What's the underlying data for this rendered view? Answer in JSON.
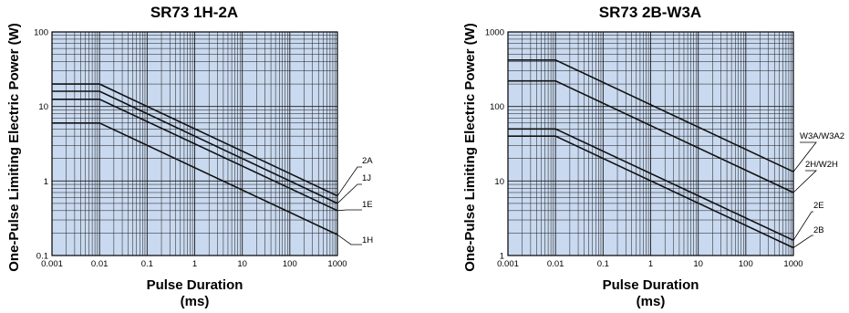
{
  "colors": {
    "plot_background": "#c9d9ef",
    "grid_line": "#1a1a1a",
    "series_line": "#111111"
  },
  "chart_data": [
    {
      "type": "line",
      "title": "SR73 1H-2A",
      "xlabel": "Pulse Duration",
      "xlabel_unit": "(ms)",
      "ylabel": "One-Pulse Limiting Electric Power (W)",
      "xscale": "log",
      "yscale": "log",
      "xlim": [
        0.001,
        1000
      ],
      "ylim": [
        0.1,
        100
      ],
      "grid": true,
      "x_ticks": [
        0.001,
        0.01,
        0.1,
        1,
        10,
        100,
        1000
      ],
      "x_tick_labels": [
        "0.001",
        "0.01",
        "0.1",
        "1",
        "10",
        "100",
        "1000"
      ],
      "y_ticks": [
        0.1,
        1,
        10,
        100
      ],
      "y_tick_labels": [
        "0.1",
        "1",
        "10",
        "100"
      ],
      "series": [
        {
          "name": "2A",
          "x": [
            0.001,
            0.01,
            1000
          ],
          "y": [
            20,
            20,
            0.63
          ]
        },
        {
          "name": "1J",
          "x": [
            0.001,
            0.01,
            1000
          ],
          "y": [
            16,
            16,
            0.5
          ]
        },
        {
          "name": "1E",
          "x": [
            0.001,
            0.01,
            1000
          ],
          "y": [
            12.5,
            12.5,
            0.4
          ]
        },
        {
          "name": "1H",
          "x": [
            0.001,
            0.01,
            1000
          ],
          "y": [
            6,
            6,
            0.19
          ]
        }
      ]
    },
    {
      "type": "line",
      "title": "SR73 2B-W3A",
      "xlabel": "Pulse Duration",
      "xlabel_unit": "(ms)",
      "ylabel": "One-Pulse Limiting Electric Power (W)",
      "xscale": "log",
      "yscale": "log",
      "xlim": [
        0.001,
        1000
      ],
      "ylim": [
        1,
        1000
      ],
      "grid": true,
      "x_ticks": [
        0.001,
        0.01,
        0.1,
        1,
        10,
        100,
        1000
      ],
      "x_tick_labels": [
        "0.001",
        "0.01",
        "0.1",
        "1",
        "10",
        "100",
        "1000"
      ],
      "y_ticks": [
        1,
        10,
        100,
        1000
      ],
      "y_tick_labels": [
        "1",
        "10",
        "100",
        "1000"
      ],
      "series": [
        {
          "name": "W3A/W3A2",
          "x": [
            0.001,
            0.01,
            1000
          ],
          "y": [
            420,
            420,
            13.3
          ]
        },
        {
          "name": "2H/W2H",
          "x": [
            0.001,
            0.01,
            1000
          ],
          "y": [
            220,
            220,
            7
          ]
        },
        {
          "name": "2E",
          "x": [
            0.001,
            0.01,
            1000
          ],
          "y": [
            50,
            50,
            1.6
          ]
        },
        {
          "name": "2B",
          "x": [
            0.001,
            0.01,
            1000
          ],
          "y": [
            40,
            40,
            1.27
          ]
        }
      ]
    }
  ]
}
